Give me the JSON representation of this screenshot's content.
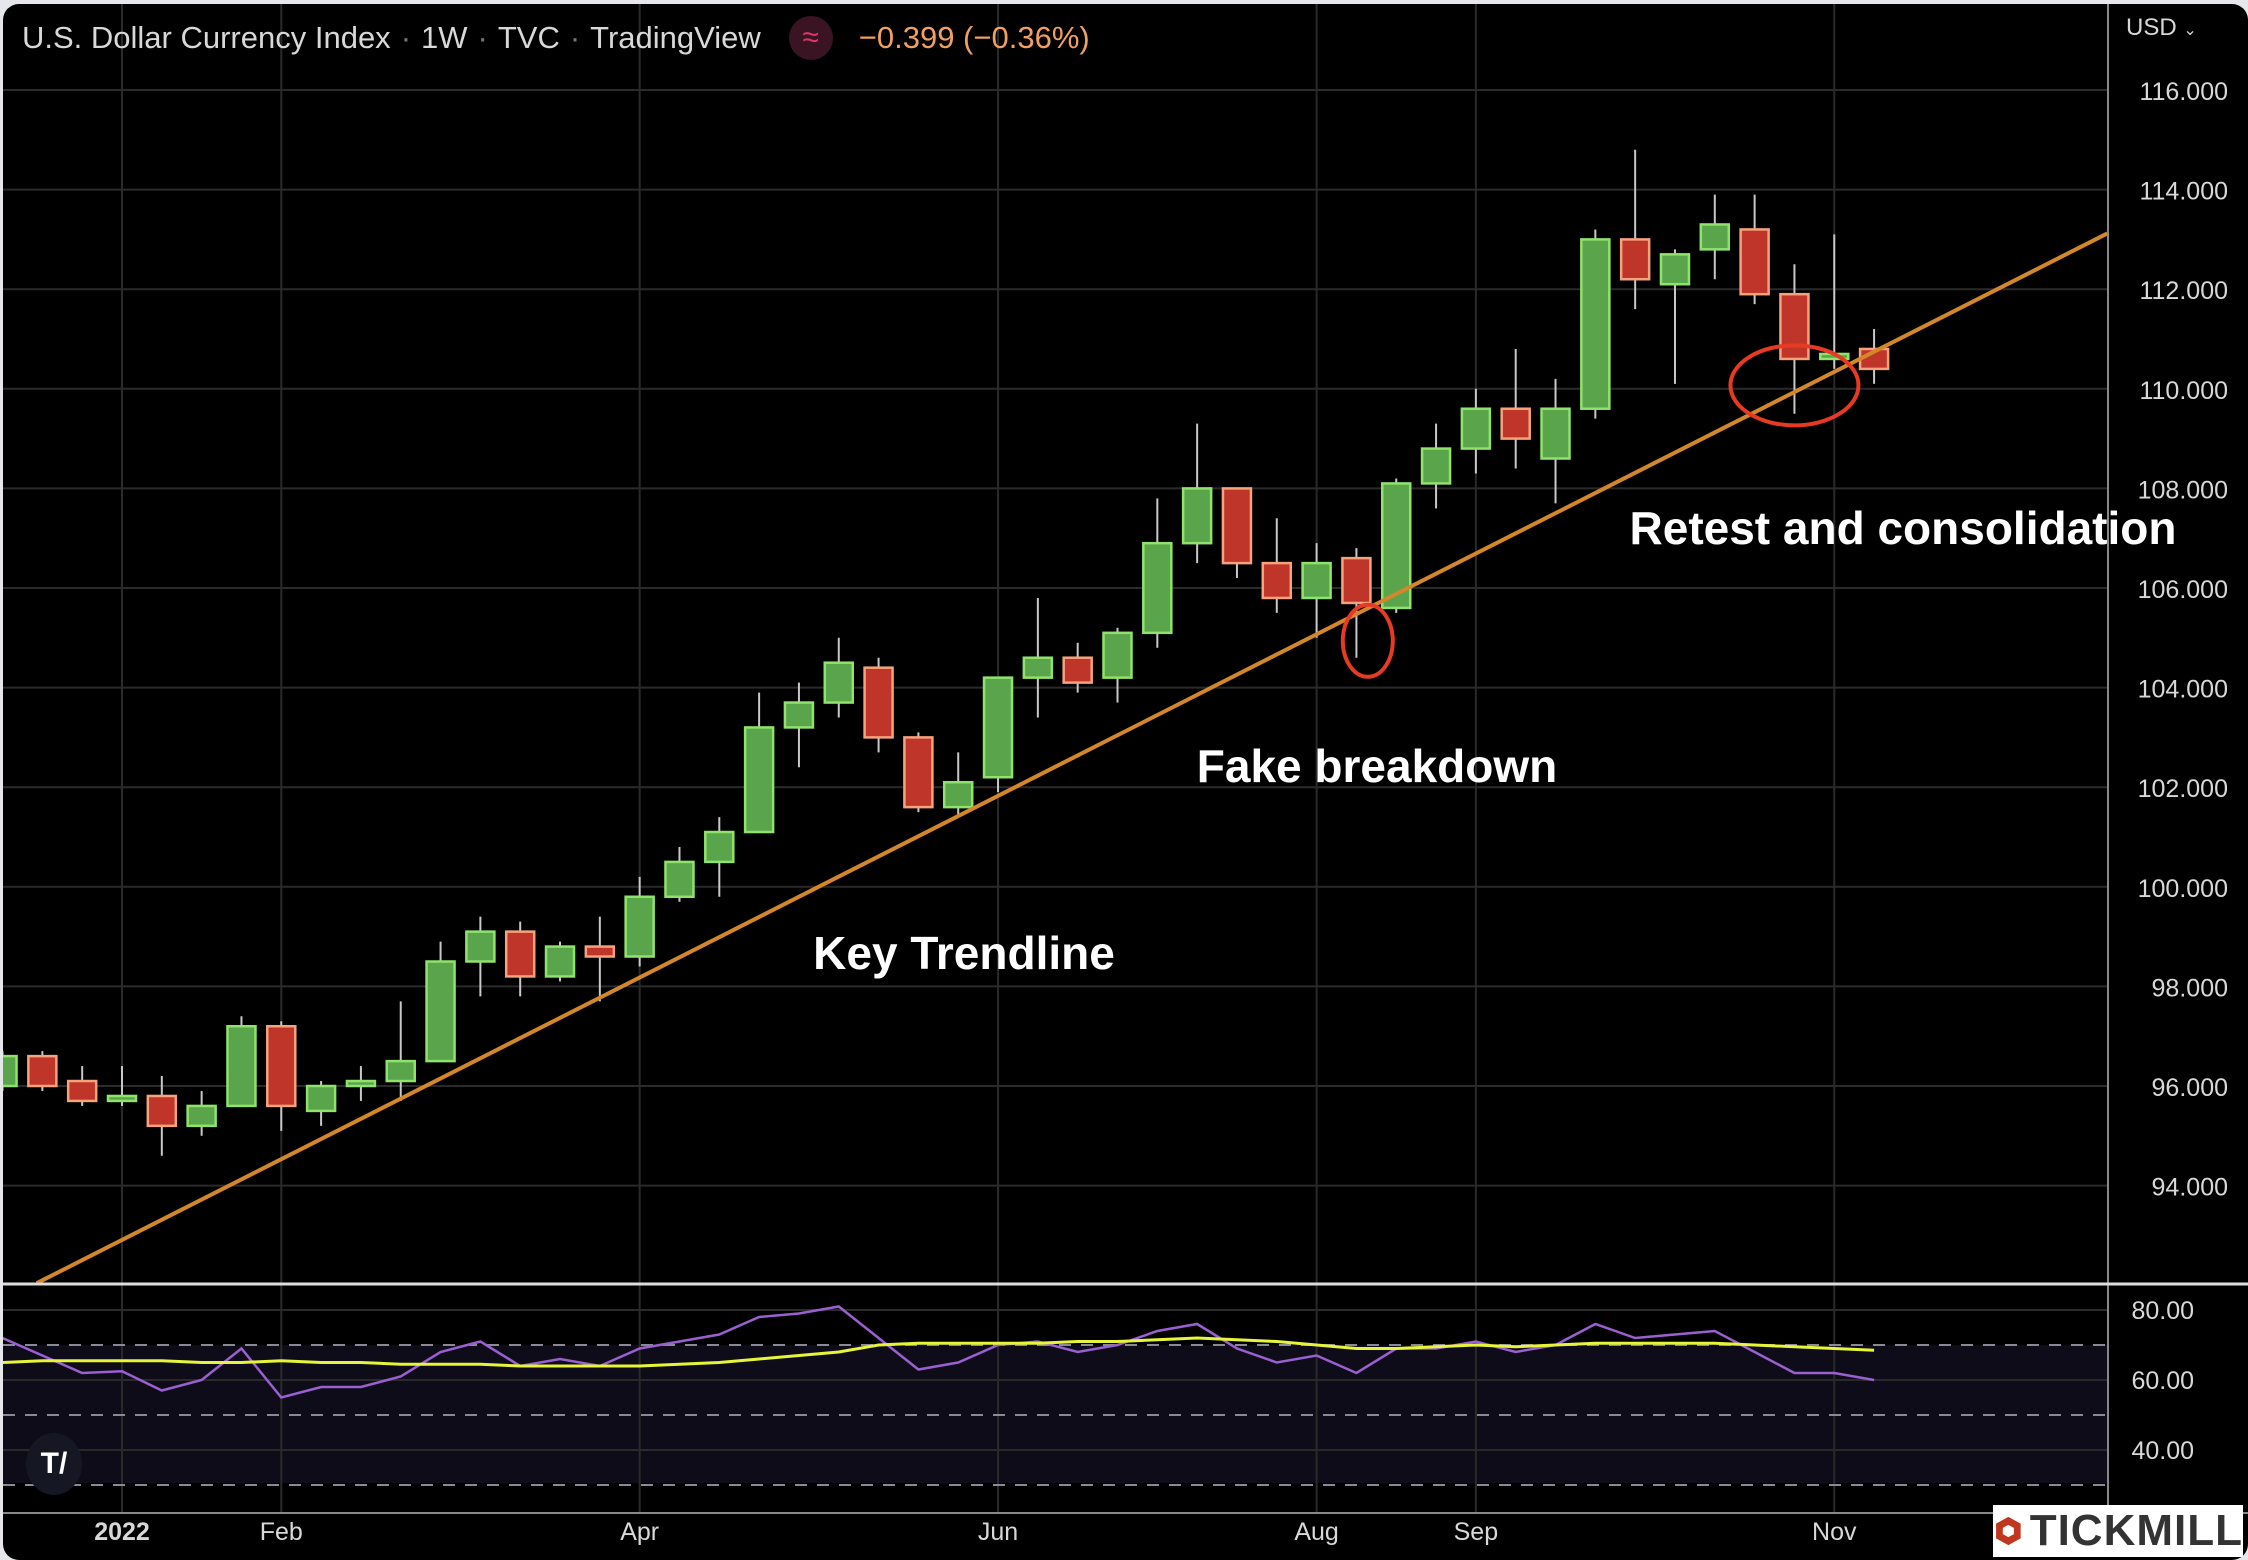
{
  "header": {
    "symbol": "U.S. Dollar Currency Index",
    "interval": "1W",
    "exchange": "TVC",
    "source": "TradingView",
    "change": "−0.399 (−0.36%)",
    "indicator_icon": "approx-wave-icon"
  },
  "currency_selector": "USD",
  "annotations": {
    "key_trendline": "Key Trendline",
    "fake_breakdown": "Fake breakdown",
    "retest": "Retest and consolidation"
  },
  "branding": {
    "tradingview_logo": "TV",
    "tickmill_logo": "TICKMILL"
  },
  "colors": {
    "up": "#5aa54c",
    "up_border": "#8fe36b",
    "down": "#c0352a",
    "down_border": "#f6a27c",
    "trendline": "#d4872a",
    "rsi": "#9a5fd0",
    "rsi_ma": "#e6f53a",
    "ellipse": "#e63a22"
  },
  "chart_data": [
    {
      "type": "candlestick",
      "title": "U.S. Dollar Currency Index · 1W · TVC",
      "y_axis": {
        "ticks": [
          "94.000",
          "96.000",
          "98.000",
          "100.000",
          "102.000",
          "104.000",
          "106.000",
          "108.000",
          "110.000",
          "112.000",
          "114.000",
          "116.000"
        ],
        "ylim": [
          92,
          116.8
        ],
        "position": "right"
      },
      "x_axis": {
        "ticks": [
          {
            "label": "2022",
            "date": "2022-01-03",
            "bold": true
          },
          {
            "label": "Feb",
            "date": "2022-01-31"
          },
          {
            "label": "Apr",
            "date": "2022-04-04"
          },
          {
            "label": "Jun",
            "date": "2022-06-06"
          },
          {
            "label": "Aug",
            "date": "2022-08-01"
          },
          {
            "label": "Sep",
            "date": "2022-08-29"
          },
          {
            "label": "Nov",
            "date": "2022-10-31"
          }
        ]
      },
      "grid": true,
      "candles": [
        {
          "date": "2021-12-13",
          "o": 96.0,
          "h": 96.7,
          "l": 95.9,
          "c": 96.6
        },
        {
          "date": "2021-12-20",
          "o": 96.6,
          "h": 96.7,
          "l": 95.9,
          "c": 96.0
        },
        {
          "date": "2021-12-27",
          "o": 96.1,
          "h": 96.4,
          "l": 95.6,
          "c": 95.7
        },
        {
          "date": "2022-01-03",
          "o": 95.7,
          "h": 96.4,
          "l": 95.6,
          "c": 95.8
        },
        {
          "date": "2022-01-10",
          "o": 95.8,
          "h": 96.2,
          "l": 94.6,
          "c": 95.2
        },
        {
          "date": "2022-01-17",
          "o": 95.2,
          "h": 95.9,
          "l": 95.0,
          "c": 95.6
        },
        {
          "date": "2022-01-24",
          "o": 95.6,
          "h": 97.4,
          "l": 95.6,
          "c": 97.2
        },
        {
          "date": "2022-01-31",
          "o": 97.2,
          "h": 97.3,
          "l": 95.1,
          "c": 95.6
        },
        {
          "date": "2022-02-07",
          "o": 95.5,
          "h": 96.1,
          "l": 95.2,
          "c": 96.0
        },
        {
          "date": "2022-02-14",
          "o": 96.0,
          "h": 96.4,
          "l": 95.7,
          "c": 96.1
        },
        {
          "date": "2022-02-21",
          "o": 96.1,
          "h": 97.7,
          "l": 95.7,
          "c": 96.5
        },
        {
          "date": "2022-02-28",
          "o": 96.5,
          "h": 98.9,
          "l": 96.5,
          "c": 98.5
        },
        {
          "date": "2022-03-07",
          "o": 98.5,
          "h": 99.4,
          "l": 97.8,
          "c": 99.1
        },
        {
          "date": "2022-03-14",
          "o": 99.1,
          "h": 99.3,
          "l": 97.8,
          "c": 98.2
        },
        {
          "date": "2022-03-21",
          "o": 98.2,
          "h": 98.9,
          "l": 98.1,
          "c": 98.8
        },
        {
          "date": "2022-03-28",
          "o": 98.8,
          "h": 99.4,
          "l": 97.7,
          "c": 98.6
        },
        {
          "date": "2022-04-04",
          "o": 98.6,
          "h": 100.2,
          "l": 98.4,
          "c": 99.8
        },
        {
          "date": "2022-04-11",
          "o": 99.8,
          "h": 100.8,
          "l": 99.7,
          "c": 100.5
        },
        {
          "date": "2022-04-18",
          "o": 100.5,
          "h": 101.4,
          "l": 99.8,
          "c": 101.1
        },
        {
          "date": "2022-04-25",
          "o": 101.1,
          "h": 103.9,
          "l": 101.1,
          "c": 103.2
        },
        {
          "date": "2022-05-02",
          "o": 103.2,
          "h": 104.1,
          "l": 102.4,
          "c": 103.7
        },
        {
          "date": "2022-05-09",
          "o": 103.7,
          "h": 105.0,
          "l": 103.4,
          "c": 104.5
        },
        {
          "date": "2022-05-16",
          "o": 104.4,
          "h": 104.6,
          "l": 102.7,
          "c": 103.0
        },
        {
          "date": "2022-05-23",
          "o": 103.0,
          "h": 103.1,
          "l": 101.5,
          "c": 101.6
        },
        {
          "date": "2022-05-30",
          "o": 101.6,
          "h": 102.7,
          "l": 101.4,
          "c": 102.1
        },
        {
          "date": "2022-06-06",
          "o": 102.2,
          "h": 104.2,
          "l": 101.9,
          "c": 104.2
        },
        {
          "date": "2022-06-13",
          "o": 104.2,
          "h": 105.8,
          "l": 103.4,
          "c": 104.6
        },
        {
          "date": "2022-06-20",
          "o": 104.6,
          "h": 104.9,
          "l": 103.9,
          "c": 104.1
        },
        {
          "date": "2022-06-27",
          "o": 104.2,
          "h": 105.2,
          "l": 103.7,
          "c": 105.1
        },
        {
          "date": "2022-07-04",
          "o": 105.1,
          "h": 107.8,
          "l": 104.8,
          "c": 106.9
        },
        {
          "date": "2022-07-11",
          "o": 106.9,
          "h": 109.3,
          "l": 106.5,
          "c": 108.0
        },
        {
          "date": "2022-07-18",
          "o": 108.0,
          "h": 108.0,
          "l": 106.2,
          "c": 106.5
        },
        {
          "date": "2022-07-25",
          "o": 106.5,
          "h": 107.4,
          "l": 105.5,
          "c": 105.8
        },
        {
          "date": "2022-08-01",
          "o": 105.8,
          "h": 106.9,
          "l": 105.0,
          "c": 106.5
        },
        {
          "date": "2022-08-08",
          "o": 106.6,
          "h": 106.8,
          "l": 104.6,
          "c": 105.7
        },
        {
          "date": "2022-08-15",
          "o": 105.6,
          "h": 108.2,
          "l": 105.5,
          "c": 108.1
        },
        {
          "date": "2022-08-22",
          "o": 108.1,
          "h": 109.3,
          "l": 107.6,
          "c": 108.8
        },
        {
          "date": "2022-08-29",
          "o": 108.8,
          "h": 110.0,
          "l": 108.3,
          "c": 109.6
        },
        {
          "date": "2022-09-05",
          "o": 109.6,
          "h": 110.8,
          "l": 108.4,
          "c": 109.0
        },
        {
          "date": "2022-09-12",
          "o": 108.6,
          "h": 110.2,
          "l": 107.7,
          "c": 109.6
        },
        {
          "date": "2022-09-19",
          "o": 109.6,
          "h": 113.2,
          "l": 109.4,
          "c": 113.0
        },
        {
          "date": "2022-09-26",
          "o": 113.0,
          "h": 114.8,
          "l": 111.6,
          "c": 112.2
        },
        {
          "date": "2022-10-03",
          "o": 112.1,
          "h": 112.8,
          "l": 110.1,
          "c": 112.7
        },
        {
          "date": "2022-10-10",
          "o": 112.8,
          "h": 113.9,
          "l": 112.2,
          "c": 113.3
        },
        {
          "date": "2022-10-17",
          "o": 113.2,
          "h": 113.9,
          "l": 111.7,
          "c": 111.9
        },
        {
          "date": "2022-10-24",
          "o": 111.9,
          "h": 112.5,
          "l": 109.5,
          "c": 110.6
        },
        {
          "date": "2022-10-31",
          "o": 110.6,
          "h": 113.1,
          "l": 110.4,
          "c": 110.7
        },
        {
          "date": "2022-11-07",
          "o": 110.8,
          "h": 111.2,
          "l": 110.1,
          "c": 110.4
        }
      ],
      "trendline": [
        {
          "date": "2021-12-19",
          "price": 92.04
        },
        {
          "date": "2022-12-18",
          "price": 113.12
        }
      ],
      "highlights": [
        {
          "date": "2022-08-10",
          "price": 104.94,
          "label": "Fake breakdown"
        },
        {
          "date": "2022-10-24",
          "price": 110.07,
          "label": "Retest and consolidation"
        }
      ]
    },
    {
      "type": "line",
      "y_axis": {
        "ticks": [
          "40.00",
          "60.00",
          "80.00"
        ],
        "ylim": [
          26,
          87
        ],
        "bands": [
          30,
          50,
          70
        ],
        "position": "right"
      },
      "series": [
        {
          "values": [
            72,
            67,
            62,
            62.5,
            57,
            60,
            69,
            55,
            58,
            58,
            61,
            68,
            71,
            64,
            66,
            64,
            69,
            71,
            73,
            78,
            79,
            81,
            72,
            63,
            65,
            70,
            71,
            68,
            70,
            74,
            76,
            69,
            65,
            67,
            62,
            69,
            69,
            71,
            68,
            70,
            76,
            72,
            73,
            74,
            68,
            62,
            62,
            60
          ]
        },
        {
          "values": [
            65,
            65.5,
            65.5,
            65.5,
            65.5,
            65,
            65,
            65.5,
            65,
            65,
            64.5,
            64.5,
            64.5,
            64,
            64,
            64,
            64,
            64.5,
            65,
            66,
            67,
            68,
            70,
            70.5,
            70.5,
            70.5,
            70.5,
            71,
            71,
            71.5,
            72,
            71.5,
            71,
            70,
            69,
            69,
            69.5,
            70,
            69.5,
            70,
            70.5,
            70.5,
            70.5,
            70.5,
            70,
            69.5,
            69,
            68.5
          ]
        }
      ]
    }
  ]
}
